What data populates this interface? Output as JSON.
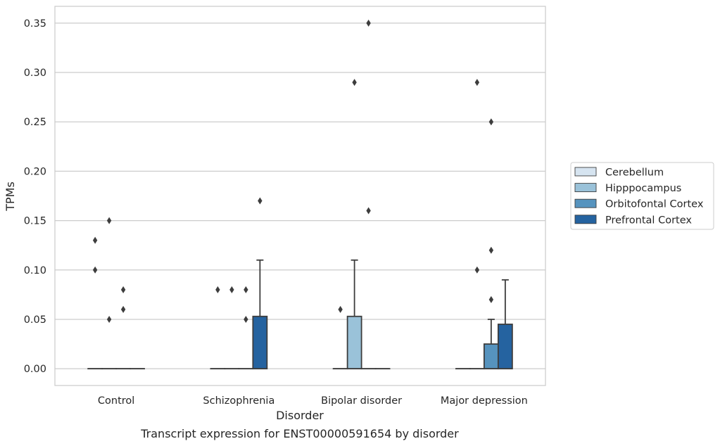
{
  "chart_data": {
    "type": "box",
    "title": "",
    "caption": "Transcript expression for ENST00000591654 by disorder",
    "xlabel": "Disorder",
    "ylabel": "TPMs",
    "ylim": [
      -0.017,
      0.367
    ],
    "yticks": [
      "0.00",
      "0.05",
      "0.10",
      "0.15",
      "0.20",
      "0.25",
      "0.30",
      "0.35"
    ],
    "categories": [
      "Control",
      "Schizophrenia",
      "Bipolar disorder",
      "Major depression"
    ],
    "grid": "horizontal",
    "legend_position": "right",
    "series": [
      {
        "name": "Cerebellum",
        "color": "#d6e4f0",
        "boxes": [
          {
            "q1": 0,
            "median": 0,
            "q3": 0,
            "whisker_low": 0,
            "whisker_high": 0,
            "outliers": [
              0.1,
              0.13
            ]
          },
          {
            "q1": 0,
            "median": 0,
            "q3": 0,
            "whisker_low": 0,
            "whisker_high": 0,
            "outliers": [
              0.08
            ]
          },
          {
            "q1": 0,
            "median": 0,
            "q3": 0,
            "whisker_low": 0,
            "whisker_high": 0,
            "outliers": [
              0.06
            ]
          },
          {
            "q1": 0,
            "median": 0,
            "q3": 0,
            "whisker_low": 0,
            "whisker_high": 0,
            "outliers": []
          }
        ]
      },
      {
        "name": "Hipppocampus",
        "color": "#9ac2d9",
        "boxes": [
          {
            "q1": 0,
            "median": 0,
            "q3": 0,
            "whisker_low": 0,
            "whisker_high": 0,
            "outliers": [
              0.05,
              0.15
            ]
          },
          {
            "q1": 0,
            "median": 0,
            "q3": 0,
            "whisker_low": 0,
            "whisker_high": 0,
            "outliers": [
              0.08
            ]
          },
          {
            "q1": 0,
            "median": 0,
            "q3": 0.053,
            "whisker_low": 0,
            "whisker_high": 0.11,
            "outliers": [
              0.29
            ]
          },
          {
            "q1": 0,
            "median": 0,
            "q3": 0,
            "whisker_low": 0,
            "whisker_high": 0,
            "outliers": [
              0.1,
              0.29
            ]
          }
        ]
      },
      {
        "name": "Orbitofontal Cortex",
        "color": "#5693be",
        "boxes": [
          {
            "q1": 0,
            "median": 0,
            "q3": 0,
            "whisker_low": 0,
            "whisker_high": 0,
            "outliers": [
              0.06,
              0.08
            ]
          },
          {
            "q1": 0,
            "median": 0,
            "q3": 0,
            "whisker_low": 0,
            "whisker_high": 0,
            "outliers": [
              0.05,
              0.08
            ]
          },
          {
            "q1": 0,
            "median": 0,
            "q3": 0,
            "whisker_low": 0,
            "whisker_high": 0,
            "outliers": [
              0.16,
              0.35
            ]
          },
          {
            "q1": 0,
            "median": 0,
            "q3": 0.025,
            "whisker_low": 0,
            "whisker_high": 0.05,
            "outliers": [
              0.07,
              0.12,
              0.25
            ]
          }
        ]
      },
      {
        "name": "Prefrontal Cortex",
        "color": "#2563a0",
        "boxes": [
          {
            "q1": 0,
            "median": 0,
            "q3": 0,
            "whisker_low": 0,
            "whisker_high": 0,
            "outliers": []
          },
          {
            "q1": 0,
            "median": 0,
            "q3": 0.053,
            "whisker_low": 0,
            "whisker_high": 0.11,
            "outliers": [
              0.17
            ]
          },
          {
            "q1": 0,
            "median": 0,
            "q3": 0,
            "whisker_low": 0,
            "whisker_high": 0,
            "outliers": []
          },
          {
            "q1": 0,
            "median": 0,
            "q3": 0.045,
            "whisker_low": 0,
            "whisker_high": 0.09,
            "outliers": []
          }
        ]
      }
    ]
  }
}
